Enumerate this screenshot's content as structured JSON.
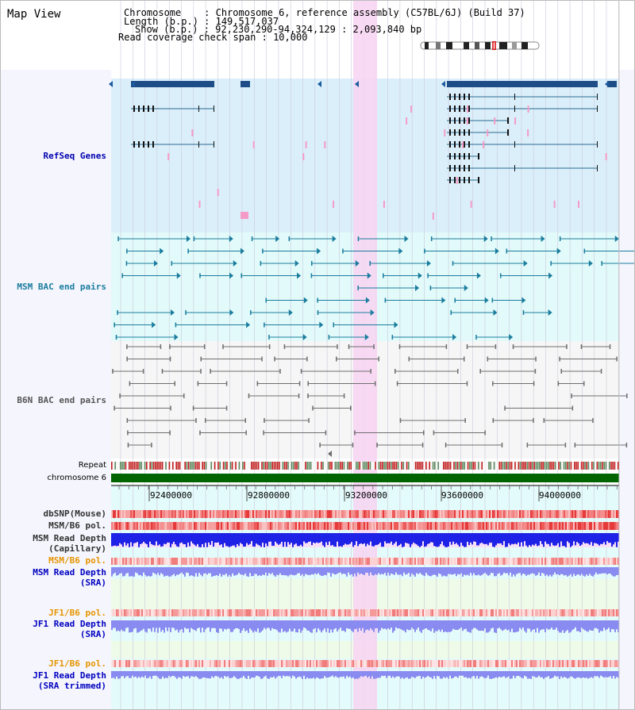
{
  "header": {
    "title": "Map View",
    "chromosome_line": "Chromosome    : Chromosome 6, reference assembly (C57BL/6J) (Build 37)",
    "length_line": "Length (b.p.) : 149,517,037",
    "show_line": "Show (b.p.) : 92,230,290-94,324,129 : 2,093,840 bp",
    "coverage_line": "Read coverage check span : 10,000"
  },
  "tracks": {
    "refseq": "RefSeq Genes",
    "msm_bac": "MSM BAC end pairs",
    "b6n_bac": "B6N BAC end pairs",
    "repeat": "Repeat",
    "chromosome": "chromosome 6",
    "dbsnp": "dbSNP(Mouse)",
    "msm_pol": "MSM/B6 pol.",
    "msm_depth_cap": "MSM Read Depth\n(Capillary)",
    "msm_pol2": "MSM/B6 pol.",
    "msm_depth_sra": "MSM Read Depth\n(SRA)",
    "jf1_pol": "JF1/B6 pol.",
    "jf1_depth_sra": "JF1 Read Depth\n(SRA)",
    "jf1_pol2": "JF1/B6 pol.",
    "jf1_depth_trim": "JF1 Read Depth\n(SRA trimmed)"
  },
  "axis": {
    "ticks": [
      "92400000",
      "92800000",
      "93200000",
      "93600000",
      "94000000"
    ]
  },
  "colors": {
    "refseq_bg": "#dbeffa",
    "msm_bg": "#e2fafa",
    "b6n_bg": "#f6f6f6",
    "left_panel": "#f5f5fd",
    "highlight": "#f8d4f2",
    "gene": "#1e4c86",
    "msm_feature": "#1a7d9e",
    "b6n_feature": "#6e6e6e",
    "chrom_bar": "#006400",
    "depth_blue": "#1d22e6",
    "depth_light": "#8a8bf0"
  }
}
